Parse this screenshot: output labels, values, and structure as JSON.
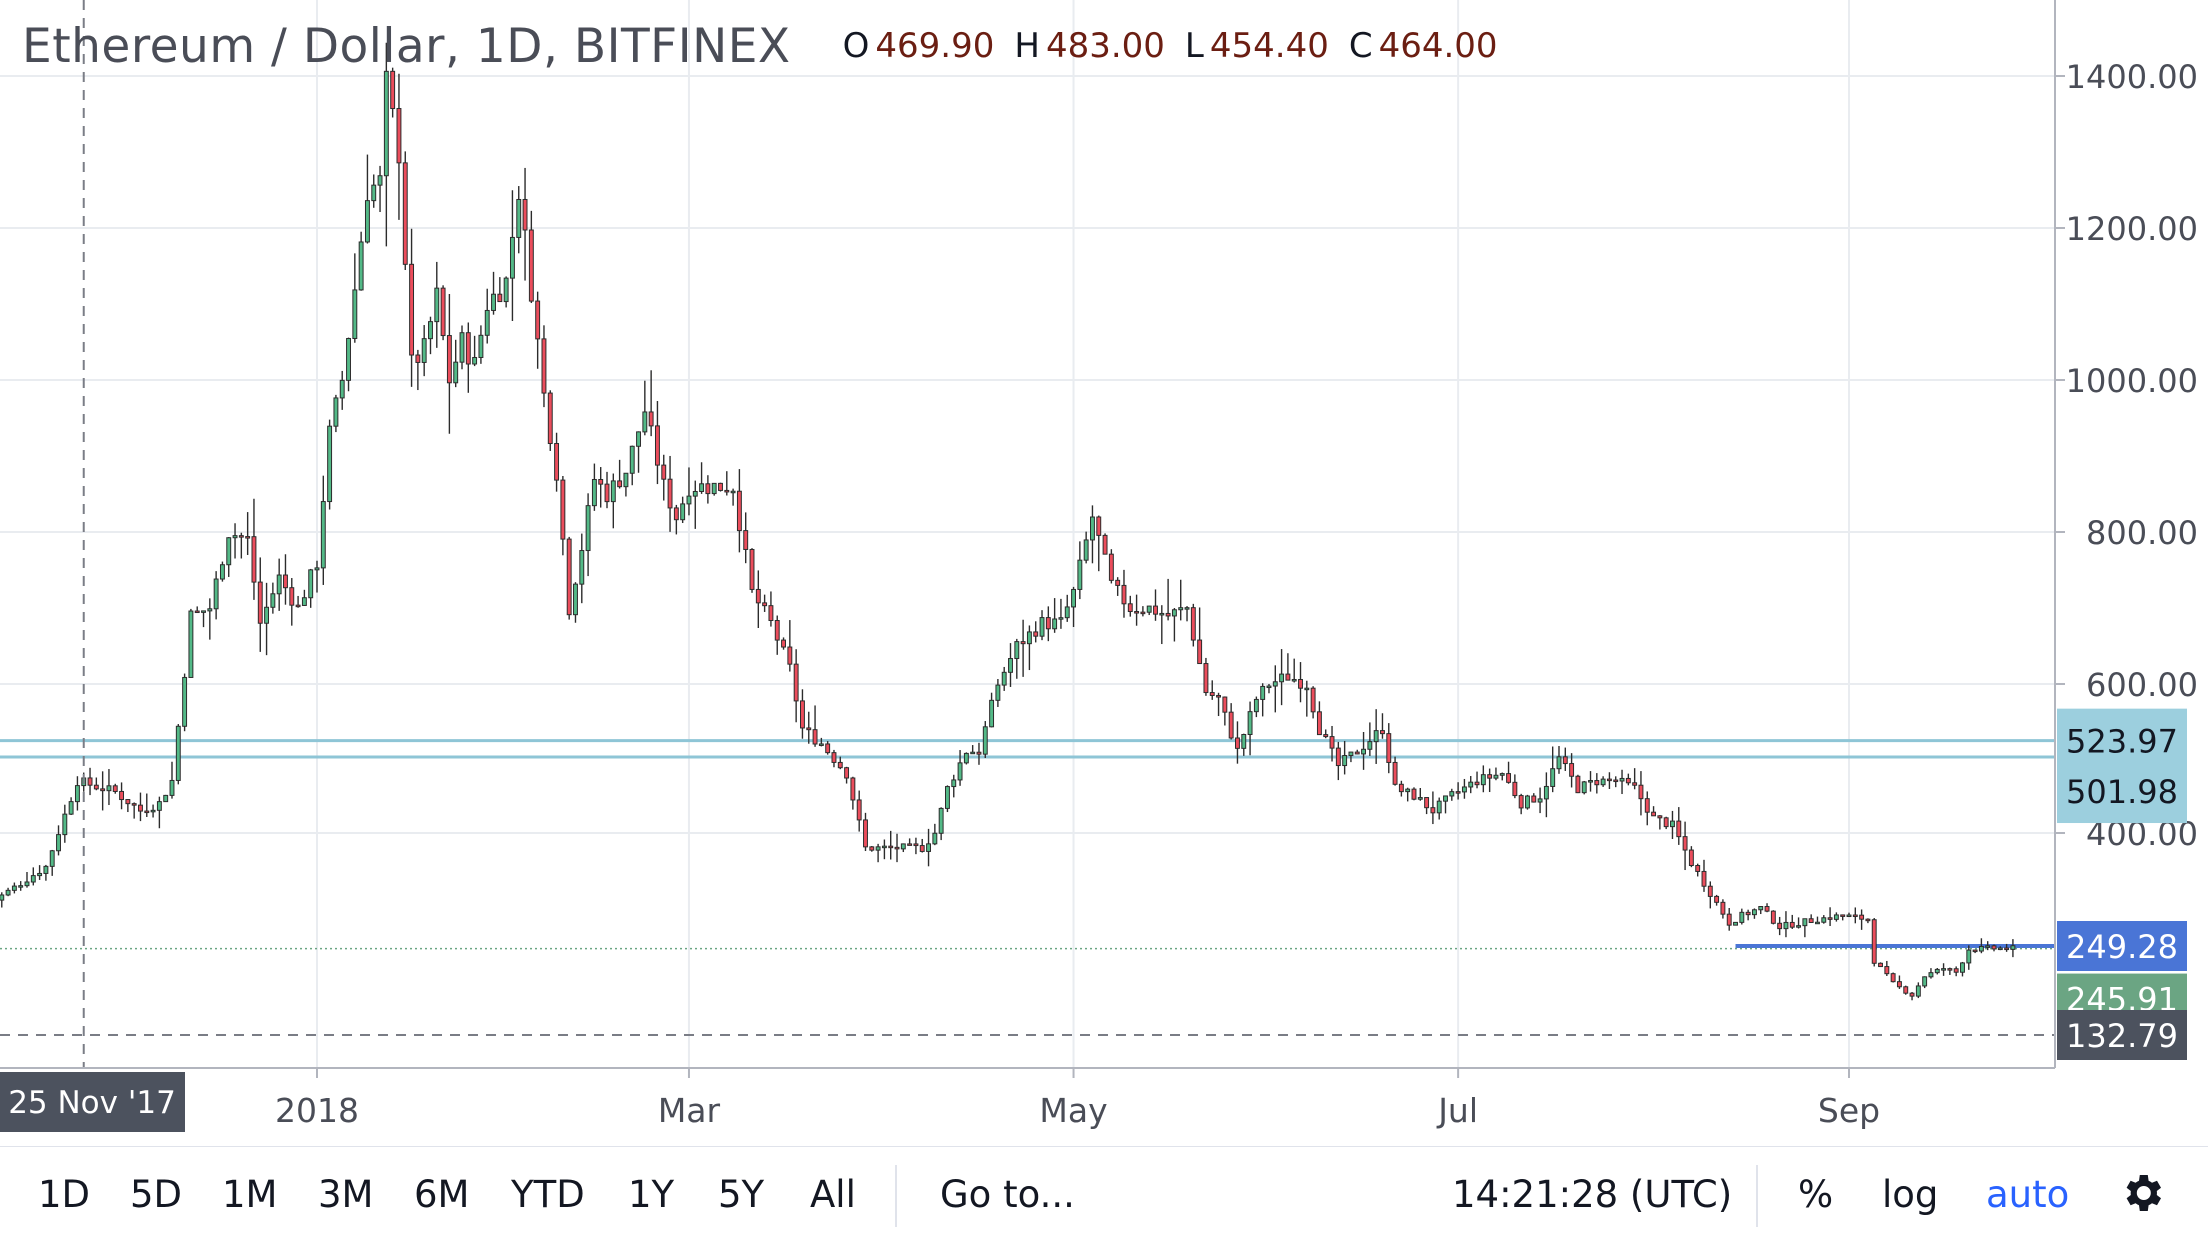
{
  "header": {
    "title": "Ethereum / Dollar, 1D, BITFINEX",
    "ohlc": [
      {
        "key": "O",
        "value": "469.90"
      },
      {
        "key": "H",
        "value": "483.00"
      },
      {
        "key": "L",
        "value": "454.40"
      },
      {
        "key": "C",
        "value": "464.00"
      }
    ]
  },
  "toolbar": {
    "ranges": [
      "1D",
      "5D",
      "1M",
      "3M",
      "6M",
      "YTD",
      "1Y",
      "5Y",
      "All"
    ],
    "goto_label": "Go to...",
    "clock": "14:21:28 (UTC)",
    "percent_label": "%",
    "log_label": "log",
    "auto_label": "auto",
    "settings_icon": "gear-icon"
  },
  "colors": {
    "up": "#53b987",
    "down": "#eb4d5c",
    "bg": "#ffffff",
    "grid": "#e9ecf0",
    "hline": "#8ec5d6",
    "blue": "#4a75d6",
    "price_green": "#6ba583",
    "crosshair_label": "#4c525e"
  },
  "chart_data": {
    "type": "candlestick",
    "symbol": "Ethereum / Dollar",
    "interval": "1D",
    "exchange": "BITFINEX",
    "x_tick_labels": [
      "2018",
      "Mar",
      "May",
      "Jul",
      "Sep"
    ],
    "x_tick_dates": [
      "2018-01-01",
      "2018-03-01",
      "2018-05-01",
      "2018-07-01",
      "2018-09-01"
    ],
    "x_range": [
      "2017-11-10",
      "2018-09-27"
    ],
    "y_scale": "piecewise-compressed",
    "y_ticks": [
      400,
      600,
      800,
      1000,
      1200,
      1400
    ],
    "y_tick_labels": [
      "400.00",
      "600.00",
      "800.00",
      "1000.00",
      "1200.00",
      "1400.00"
    ],
    "crosshair": {
      "date": "2017-11-25",
      "label": "25 Nov '17",
      "price": 132.79,
      "price_label": "132.79"
    },
    "horizontal_lines": [
      {
        "price": 523.97,
        "label": "523.97",
        "color": "#8ec5d6",
        "extends": "full"
      },
      {
        "price": 501.98,
        "label": "501.98",
        "color": "#8ec5d6",
        "extends": "full"
      },
      {
        "price": 249.28,
        "label": "249.28",
        "color": "#4a75d6",
        "extends": "from-2018-08-14"
      }
    ],
    "last_price": {
      "price": 245.91,
      "label": "245.91"
    },
    "price_path": [
      [
        "2017-11-10",
        300
      ],
      [
        "2017-11-20",
        355
      ],
      [
        "2017-11-25",
        470
      ],
      [
        "2017-12-01",
        455
      ],
      [
        "2017-12-05",
        430
      ],
      [
        "2017-12-08",
        440
      ],
      [
        "2017-12-10",
        470
      ],
      [
        "2017-12-13",
        690
      ],
      [
        "2017-12-16",
        700
      ],
      [
        "2017-12-19",
        800
      ],
      [
        "2017-12-22",
        790
      ],
      [
        "2017-12-24",
        680
      ],
      [
        "2017-12-27",
        740
      ],
      [
        "2017-12-30",
        700
      ],
      [
        "2018-01-02",
        760
      ],
      [
        "2018-01-04",
        930
      ],
      [
        "2018-01-06",
        1000
      ],
      [
        "2018-01-08",
        1120
      ],
      [
        "2018-01-10",
        1250
      ],
      [
        "2018-01-12",
        1260
      ],
      [
        "2018-01-13",
        1390
      ],
      [
        "2018-01-15",
        1300
      ],
      [
        "2018-01-17",
        1020
      ],
      [
        "2018-01-19",
        1040
      ],
      [
        "2018-01-21",
        1110
      ],
      [
        "2018-01-23",
        1000
      ],
      [
        "2018-01-25",
        1050
      ],
      [
        "2018-01-27",
        1020
      ],
      [
        "2018-01-29",
        1100
      ],
      [
        "2018-02-01",
        1130
      ],
      [
        "2018-02-03",
        1250
      ],
      [
        "2018-02-05",
        1120
      ],
      [
        "2018-02-07",
        980
      ],
      [
        "2018-02-09",
        880
      ],
      [
        "2018-02-11",
        700
      ],
      [
        "2018-02-13",
        780
      ],
      [
        "2018-02-15",
        870
      ],
      [
        "2018-02-17",
        850
      ],
      [
        "2018-02-20",
        880
      ],
      [
        "2018-02-23",
        960
      ],
      [
        "2018-02-26",
        860
      ],
      [
        "2018-02-28",
        820
      ],
      [
        "2018-03-02",
        860
      ],
      [
        "2018-03-05",
        860
      ],
      [
        "2018-03-09",
        860
      ],
      [
        "2018-03-12",
        720
      ],
      [
        "2018-03-15",
        680
      ],
      [
        "2018-03-18",
        620
      ],
      [
        "2018-03-20",
        540
      ],
      [
        "2018-03-23",
        520
      ],
      [
        "2018-03-27",
        480
      ],
      [
        "2018-03-30",
        380
      ],
      [
        "2018-04-02",
        380
      ],
      [
        "2018-04-05",
        380
      ],
      [
        "2018-04-08",
        380
      ],
      [
        "2018-04-10",
        400
      ],
      [
        "2018-04-12",
        460
      ],
      [
        "2018-04-15",
        510
      ],
      [
        "2018-04-17",
        510
      ],
      [
        "2018-04-20",
        600
      ],
      [
        "2018-04-23",
        650
      ],
      [
        "2018-04-27",
        680
      ],
      [
        "2018-04-30",
        680
      ],
      [
        "2018-05-02",
        720
      ],
      [
        "2018-05-05",
        820
      ],
      [
        "2018-05-08",
        730
      ],
      [
        "2018-05-11",
        700
      ],
      [
        "2018-05-14",
        700
      ],
      [
        "2018-05-17",
        690
      ],
      [
        "2018-05-20",
        700
      ],
      [
        "2018-05-23",
        590
      ],
      [
        "2018-05-25",
        580
      ],
      [
        "2018-05-28",
        510
      ],
      [
        "2018-05-31",
        580
      ],
      [
        "2018-06-02",
        600
      ],
      [
        "2018-06-05",
        610
      ],
      [
        "2018-06-08",
        600
      ],
      [
        "2018-06-10",
        540
      ],
      [
        "2018-06-13",
        490
      ],
      [
        "2018-06-16",
        510
      ],
      [
        "2018-06-20",
        540
      ],
      [
        "2018-06-22",
        460
      ],
      [
        "2018-06-25",
        450
      ],
      [
        "2018-06-28",
        430
      ],
      [
        "2018-07-01",
        450
      ],
      [
        "2018-07-05",
        470
      ],
      [
        "2018-07-09",
        480
      ],
      [
        "2018-07-12",
        440
      ],
      [
        "2018-07-15",
        450
      ],
      [
        "2018-07-18",
        500
      ],
      [
        "2018-07-21",
        460
      ],
      [
        "2018-07-24",
        470
      ],
      [
        "2018-07-27",
        470
      ],
      [
        "2018-07-30",
        460
      ],
      [
        "2018-08-02",
        420
      ],
      [
        "2018-08-05",
        410
      ],
      [
        "2018-08-08",
        360
      ],
      [
        "2018-08-11",
        320
      ],
      [
        "2018-08-14",
        280
      ],
      [
        "2018-08-16",
        290
      ],
      [
        "2018-08-19",
        300
      ],
      [
        "2018-08-22",
        275
      ],
      [
        "2018-08-25",
        280
      ],
      [
        "2018-08-28",
        285
      ],
      [
        "2018-09-01",
        290
      ],
      [
        "2018-09-05",
        285
      ],
      [
        "2018-09-06",
        230
      ],
      [
        "2018-09-09",
        200
      ],
      [
        "2018-09-12",
        185
      ],
      [
        "2018-09-14",
        210
      ],
      [
        "2018-09-17",
        220
      ],
      [
        "2018-09-19",
        215
      ],
      [
        "2018-09-21",
        245
      ],
      [
        "2018-09-24",
        246
      ]
    ]
  }
}
